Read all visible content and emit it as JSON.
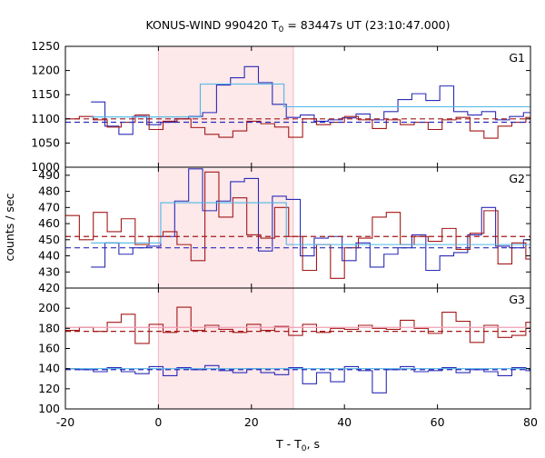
{
  "title": {
    "prefix": "KONUS-WIND 990420 T",
    "subscript": "0",
    "suffix": " = 83447s UT (23:10:47.000)"
  },
  "ylabel": "counts / sec",
  "xlabel": {
    "prefix": "T - T",
    "subscript": "0",
    "suffix": ", s"
  },
  "colors": {
    "blue": "#2b2bb8",
    "red": "#a31818",
    "cyan": "#4fb6e6",
    "pink_line": "#f0a0b4",
    "shade": "#fde8ea",
    "axis": "#000000"
  },
  "chart_data": {
    "type": "line",
    "xlim": [
      -20,
      80
    ],
    "xticks": [
      -20,
      0,
      20,
      40,
      60,
      80
    ],
    "shaded_interval": [
      0,
      29
    ],
    "panels": [
      {
        "label": "G1",
        "ylim": [
          1000,
          1250
        ],
        "yticks": [
          1000,
          1050,
          1100,
          1150,
          1200,
          1250
        ],
        "series": [
          {
            "color": "blue",
            "style": "step",
            "x": [
              -14.5,
              -11.5,
              -8.5,
              -5.5,
              -2.5,
              0.5,
              3.5,
              6.5,
              9.5,
              12.5,
              15.5,
              18.5,
              21.5,
              24.5,
              27.5,
              30.5,
              33.5,
              36.5,
              39.5,
              42.5,
              45.5,
              48.5,
              51.5,
              54.5,
              57.5,
              60.5,
              63.5,
              66.5,
              69.5,
              72.5,
              75.5,
              78.5
            ],
            "y": [
              1135,
              1085,
              1068,
              1105,
              1088,
              1093,
              1100,
              1105,
              1113,
              1170,
              1185,
              1208,
              1175,
              1130,
              1103,
              1108,
              1095,
              1098,
              1102,
              1110,
              1098,
              1115,
              1140,
              1152,
              1138,
              1168,
              1115,
              1108,
              1115,
              1098,
              1105,
              1113
            ]
          },
          {
            "color": "red",
            "style": "step",
            "x": [
              -20,
              -17,
              -14,
              -11,
              -8,
              -5,
              -2,
              1,
              4,
              7,
              10,
              13,
              16,
              19,
              22,
              25,
              28,
              31,
              34,
              37,
              40,
              43,
              46,
              49,
              52,
              55,
              58,
              61,
              64,
              67,
              70,
              73,
              76,
              79
            ],
            "y": [
              1100,
              1105,
              1098,
              1083,
              1093,
              1108,
              1078,
              1095,
              1100,
              1082,
              1068,
              1062,
              1075,
              1095,
              1090,
              1083,
              1062,
              1100,
              1088,
              1093,
              1105,
              1098,
              1080,
              1098,
              1088,
              1093,
              1078,
              1098,
              1103,
              1075,
              1060,
              1085,
              1093,
              1103
            ]
          },
          {
            "color": "cyan",
            "style": "step",
            "x": [
              -14.5,
              9,
              18,
              27,
              38,
              71
            ],
            "y": [
              1104,
              1172,
              1172,
              1125,
              1125,
              1125
            ]
          },
          {
            "color": "red",
            "style": "dashed",
            "x": [
              -20,
              80
            ],
            "y": [
              1100,
              1100
            ]
          },
          {
            "color": "blue",
            "style": "dashed",
            "x": [
              -20,
              80
            ],
            "y": [
              1093,
              1093
            ]
          }
        ]
      },
      {
        "label": "G2",
        "ylim": [
          420,
          495
        ],
        "yticks": [
          420,
          430,
          440,
          450,
          460,
          470,
          480,
          490
        ],
        "series": [
          {
            "color": "blue",
            "style": "step",
            "x": [
              -14.5,
              -11.5,
              -8.5,
              -5.5,
              -2.5,
              0.5,
              3.5,
              6.5,
              9.5,
              12.5,
              15.5,
              18.5,
              21.5,
              24.5,
              27.5,
              30.5,
              33.5,
              36.5,
              39.5,
              42.5,
              45.5,
              48.5,
              51.5,
              54.5,
              57.5,
              60.5,
              63.5,
              66.5,
              69.5,
              72.5,
              75.5,
              78.5
            ],
            "y": [
              433,
              448,
              441,
              445,
              446,
              452,
              474,
              494,
              468,
              474,
              486,
              488,
              443,
              477,
              475,
              440,
              451,
              452,
              437,
              448,
              433,
              441,
              445,
              453,
              431,
              440,
              442,
              453,
              470,
              446,
              445,
              450
            ]
          },
          {
            "color": "red",
            "style": "step",
            "x": [
              -20,
              -17,
              -14,
              -11,
              -8,
              -5,
              -2,
              1,
              4,
              7,
              10,
              13,
              16,
              19,
              22,
              25,
              28,
              31,
              34,
              37,
              40,
              43,
              46,
              49,
              52,
              55,
              58,
              61,
              64,
              67,
              70,
              73,
              76,
              79
            ],
            "y": [
              465,
              450,
              467,
              455,
              463,
              447,
              452,
              455,
              447,
              437,
              492,
              464,
              476,
              453,
              451,
              470,
              452,
              431,
              447,
              426,
              445,
              451,
              464,
              467,
              447,
              452,
              449,
              457,
              444,
              454,
              468,
              435,
              448,
              438
            ]
          },
          {
            "color": "cyan",
            "style": "step",
            "x": [
              -14.5,
              0.5,
              3.5,
              27.5,
              30.5,
              71
            ],
            "y": [
              448,
              473,
              473,
              447,
              447,
              447
            ]
          },
          {
            "color": "red",
            "style": "dashed",
            "x": [
              -20,
              80
            ],
            "y": [
              452,
              452
            ]
          },
          {
            "color": "blue",
            "style": "dashed",
            "x": [
              -20,
              80
            ],
            "y": [
              445,
              445
            ]
          }
        ]
      },
      {
        "label": "G3",
        "ylim": [
          100,
          220
        ],
        "yticks": [
          100,
          120,
          140,
          160,
          180,
          200
        ],
        "series": [
          {
            "color": "blue",
            "style": "step",
            "x": [
              -20,
              -17,
              -14,
              -11,
              -8,
              -5,
              -2,
              1,
              4,
              7,
              10,
              13,
              16,
              19,
              22,
              25,
              28,
              31,
              34,
              37,
              40,
              43,
              46,
              49,
              52,
              55,
              58,
              61,
              64,
              67,
              70,
              73,
              76,
              79
            ],
            "y": [
              140,
              139,
              137,
              141,
              137,
              135,
              142,
              133,
              141,
              139,
              143,
              138,
              136,
              140,
              136,
              134,
              141,
              125,
              136,
              127,
              142,
              138,
              116,
              139,
              142,
              137,
              138,
              141,
              136,
              139,
              137,
              133,
              141,
              138
            ]
          },
          {
            "color": "red",
            "style": "step",
            "x": [
              -20,
              -17,
              -14,
              -11,
              -8,
              -5,
              -2,
              1,
              4,
              7,
              10,
              13,
              16,
              19,
              22,
              25,
              28,
              31,
              34,
              37,
              40,
              43,
              46,
              49,
              52,
              55,
              58,
              61,
              64,
              67,
              70,
              73,
              76,
              79
            ],
            "y": [
              178,
              181,
              177,
              186,
              194,
              165,
              184,
              176,
              201,
              178,
              183,
              179,
              176,
              184,
              178,
              182,
              173,
              184,
              176,
              180,
              179,
              183,
              180,
              179,
              188,
              180,
              175,
              196,
              187,
              166,
              183,
              171,
              173,
              186
            ]
          },
          {
            "color": "pink_line",
            "style": "solid",
            "x": [
              -20,
              80
            ],
            "y": [
              181,
              181
            ]
          },
          {
            "color": "cyan",
            "style": "solid",
            "x": [
              -20,
              80
            ],
            "y": [
              140,
              140
            ]
          },
          {
            "color": "red",
            "style": "dashed",
            "x": [
              -20,
              80
            ],
            "y": [
              177,
              177
            ]
          },
          {
            "color": "blue",
            "style": "dashed",
            "x": [
              -20,
              80
            ],
            "y": [
              139,
              139
            ]
          }
        ]
      }
    ]
  }
}
